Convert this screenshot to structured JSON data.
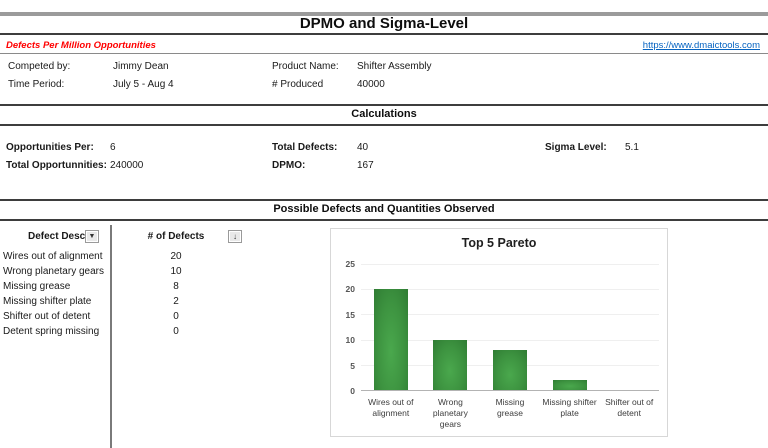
{
  "page": {
    "title": "DPMO and Sigma-Level",
    "subtitle": "Defects Per Million Opportunities",
    "link": "https://www.dmaictools.com"
  },
  "info": {
    "competed_by_label": "Competed by:",
    "competed_by_value": "Jimmy Dean",
    "time_period_label": "Time Period:",
    "time_period_value": "July 5 - Aug 4",
    "product_name_label": "Product Name:",
    "product_name_value": "Shifter Assembly",
    "produced_label": "# Produced",
    "produced_value": "40000"
  },
  "calculations": {
    "header": "Calculations",
    "opportunities_per_label": "Opportunities Per:",
    "opportunities_per_value": "6",
    "total_opportunities_label": "Total Opportunnities:",
    "total_opportunities_value": "240000",
    "total_defects_label": "Total Defects:",
    "total_defects_value": "40",
    "dpmo_label": "DPMO:",
    "dpmo_value": "167",
    "sigma_label": "Sigma Level:",
    "sigma_value": "5.1"
  },
  "defects_section": {
    "header": "Possible Defects and Quantities Observed",
    "table": {
      "header": {
        "desc": "Defect Desc.",
        "count": "# of Defects"
      },
      "rows": [
        {
          "desc": "Wires out of alignment",
          "count": "20"
        },
        {
          "desc": "Wrong planetary gears",
          "count": "10"
        },
        {
          "desc": "Missing grease",
          "count": "8"
        },
        {
          "desc": "Missing shifter plate",
          "count": "2"
        },
        {
          "desc": "Shifter out of detent",
          "count": "0"
        },
        {
          "desc": "Detent spring missing",
          "count": "0"
        }
      ]
    },
    "icons": {
      "filter_glyph": "▼",
      "sort_glyph": "↓"
    }
  },
  "chart_data": {
    "type": "bar",
    "title": "Top 5 Pareto",
    "categories": [
      "Wires out of alignment",
      "Wrong planetary gears",
      "Missing grease",
      "Missing shifter plate",
      "Shifter out of detent"
    ],
    "values": [
      20,
      10,
      8,
      2,
      0
    ],
    "xlabel": "",
    "ylabel": "",
    "ylim": [
      0,
      25
    ],
    "yticks": [
      0,
      5,
      10,
      15,
      20,
      25
    ],
    "grid": true,
    "legend_position": "none",
    "bar_color": "#3d9340"
  },
  "colors": {
    "accent_red": "#ff0000",
    "link_blue": "#0563c1",
    "bar_green": "#3d9340",
    "divider_gray": "#9b9b9b"
  }
}
